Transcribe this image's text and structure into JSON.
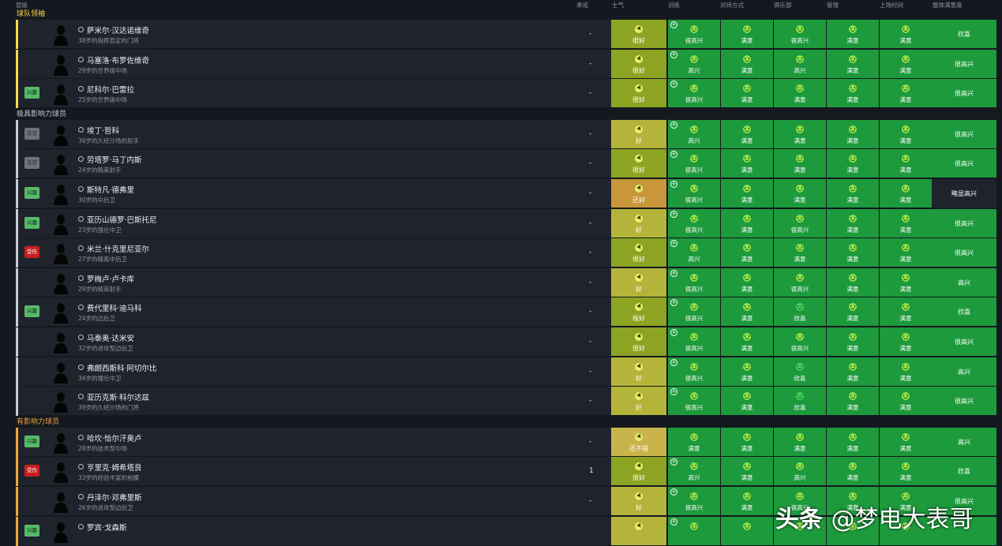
{
  "columns": {
    "level": "层级",
    "promise": "承诺",
    "morale": "士气",
    "training": "训练",
    "treatment": "对待方式",
    "club": "俱乐部",
    "management": "管理",
    "playtime": "上场时间",
    "overall": "整体满意度"
  },
  "groups": [
    {
      "title": "球队领袖",
      "color": "#ffd94a",
      "players": [
        {
          "name": "萨米尔·汉达诺维奇",
          "desc": "38岁的指挥若定的门将",
          "badge": "",
          "promise": "-",
          "morale": "很好",
          "morale_tone": "good",
          "training": "很高兴",
          "treatment": "满意",
          "club": "很高兴",
          "management": "满意",
          "playtime": "满意",
          "overall": "欣喜",
          "overall_tone": "green"
        },
        {
          "name": "马塞洛·布罗佐维奇",
          "desc": "29岁的世界级中场",
          "badge": "",
          "promise": "-",
          "morale": "很好",
          "morale_tone": "good",
          "training": "高兴",
          "treatment": "满意",
          "club": "高兴",
          "management": "满意",
          "playtime": "满意",
          "overall": "很高兴",
          "overall_tone": "green"
        },
        {
          "name": "尼科尔·巴雷拉",
          "desc": "25岁的世界级中场",
          "badge": "兴趣",
          "badge_type": "int",
          "promise": "-",
          "morale": "很好",
          "morale_tone": "good",
          "training": "很高兴",
          "treatment": "满意",
          "club": "满意",
          "management": "满意",
          "playtime": "满意",
          "overall": "很高兴",
          "overall_tone": "green"
        }
      ]
    },
    {
      "title": "极具影响力球员",
      "color": "#c6cbd4",
      "players": [
        {
          "name": "埃丁·哲科",
          "desc": "36岁的久经沙场的射手",
          "badge": "非官",
          "badge_type": "grey",
          "promise": "-",
          "morale": "好",
          "morale_tone": "ok",
          "training": "高兴",
          "treatment": "满意",
          "club": "满意",
          "management": "满意",
          "playtime": "满意",
          "overall": "很高兴",
          "overall_tone": "green"
        },
        {
          "name": "劳塔罗·马丁内斯",
          "desc": "24岁的精英射手",
          "badge": "非官",
          "badge_type": "grey",
          "promise": "-",
          "morale": "很好",
          "morale_tone": "good",
          "training": "很高兴",
          "treatment": "满意",
          "club": "满意",
          "management": "满意",
          "playtime": "满意",
          "overall": "很高兴",
          "overall_tone": "green"
        },
        {
          "name": "斯特凡·德弗里",
          "desc": "30岁的中后卫",
          "badge": "兴趣",
          "badge_type": "int",
          "promise": "-",
          "morale": "还好",
          "morale_tone": "fair",
          "training": "很高兴",
          "treatment": "满意",
          "club": "满意",
          "management": "满意",
          "playtime": "满意",
          "overall": "略显高兴",
          "overall_tone": "dark"
        },
        {
          "name": "亚历山德罗·巴斯托尼",
          "desc": "23岁的强壮中卫",
          "badge": "兴趣",
          "badge_type": "int",
          "promise": "-",
          "morale": "好",
          "morale_tone": "ok",
          "training": "很高兴",
          "treatment": "满意",
          "club": "很高兴",
          "management": "满意",
          "playtime": "满意",
          "overall": "很高兴",
          "overall_tone": "green"
        },
        {
          "name": "米兰·什克里尼亚尔",
          "desc": "27岁的精英中后卫",
          "badge": "受伤",
          "badge_type": "inj",
          "promise": "-",
          "morale": "很好",
          "morale_tone": "good",
          "training": "高兴",
          "treatment": "满意",
          "club": "满意",
          "management": "满意",
          "playtime": "满意",
          "overall": "很高兴",
          "overall_tone": "green"
        },
        {
          "name": "罗梅卢·卢卡库",
          "desc": "29岁的精英射手",
          "badge": "",
          "promise": "-",
          "morale": "好",
          "morale_tone": "ok",
          "training": "很高兴",
          "treatment": "满意",
          "club": "很高兴",
          "management": "满意",
          "playtime": "满意",
          "overall": "高兴",
          "overall_tone": "green"
        },
        {
          "name": "费代里科·迪马科",
          "desc": "24岁的边后卫",
          "badge": "兴趣",
          "badge_type": "int",
          "promise": "-",
          "morale": "极好",
          "morale_tone": "good",
          "training": "很高兴",
          "treatment": "满意",
          "club": "欣喜",
          "management": "满意",
          "playtime": "满意",
          "overall": "欣喜",
          "overall_tone": "green"
        },
        {
          "name": "马泰奥·达米安",
          "desc": "32岁的进攻型边后卫",
          "badge": "",
          "promise": "-",
          "morale": "很好",
          "morale_tone": "good",
          "training": "很高兴",
          "treatment": "满意",
          "club": "很高兴",
          "management": "满意",
          "playtime": "满意",
          "overall": "很高兴",
          "overall_tone": "green"
        },
        {
          "name": "弗朗西斯科·阿切尔比",
          "desc": "34岁的强壮中卫",
          "badge": "",
          "promise": "-",
          "morale": "好",
          "morale_tone": "ok",
          "training": "很高兴",
          "treatment": "满意",
          "club": "欣喜",
          "management": "满意",
          "playtime": "满意",
          "overall": "高兴",
          "overall_tone": "green"
        },
        {
          "name": "亚历克斯·科尔达兹",
          "desc": "39岁的久经沙场的门将",
          "badge": "",
          "promise": "-",
          "morale": "好",
          "morale_tone": "ok",
          "training": "很高兴",
          "treatment": "满意",
          "club": "欣喜",
          "management": "满意",
          "playtime": "满意",
          "overall": "很高兴",
          "overall_tone": "green"
        }
      ]
    },
    {
      "title": "有影响力球员",
      "color": "#f0a535",
      "players": [
        {
          "name": "哈坎·恰尔汗奥卢",
          "desc": "28岁的技术型中场",
          "badge": "兴趣",
          "badge_type": "int",
          "promise": "-",
          "morale": "还不错",
          "morale_tone": "ok2",
          "training": "满意",
          "treatment": "满意",
          "club": "满意",
          "management": "满意",
          "playtime": "满意",
          "overall": "高兴",
          "overall_tone": "green"
        },
        {
          "name": "亨里克·姆希塔良",
          "desc": "33岁的经验丰富的前腰",
          "badge": "受伤",
          "badge_type": "inj",
          "promise": "1",
          "morale": "很好",
          "morale_tone": "good",
          "training": "高兴",
          "treatment": "满意",
          "club": "高兴",
          "management": "满意",
          "playtime": "满意",
          "overall": "欣喜",
          "overall_tone": "green"
        },
        {
          "name": "丹泽尔·邓弗里斯",
          "desc": "26岁的进攻型边后卫",
          "badge": "",
          "promise": "-",
          "morale": "好",
          "morale_tone": "ok",
          "training": "很高兴",
          "treatment": "满意",
          "club": "很高兴",
          "management": "满意",
          "playtime": "满意",
          "overall": "很高兴",
          "overall_tone": "green"
        },
        {
          "name": "罗宾·戈森斯",
          "desc": "",
          "badge": "兴趣",
          "badge_type": "int",
          "promise": "",
          "morale": "",
          "morale_tone": "ok",
          "training": "",
          "treatment": "",
          "club": "",
          "management": "",
          "playtime": "",
          "overall": "",
          "overall_tone": "green"
        }
      ]
    }
  ],
  "watermark": {
    "brand": "头条",
    "handle": "@梦电大表哥"
  }
}
